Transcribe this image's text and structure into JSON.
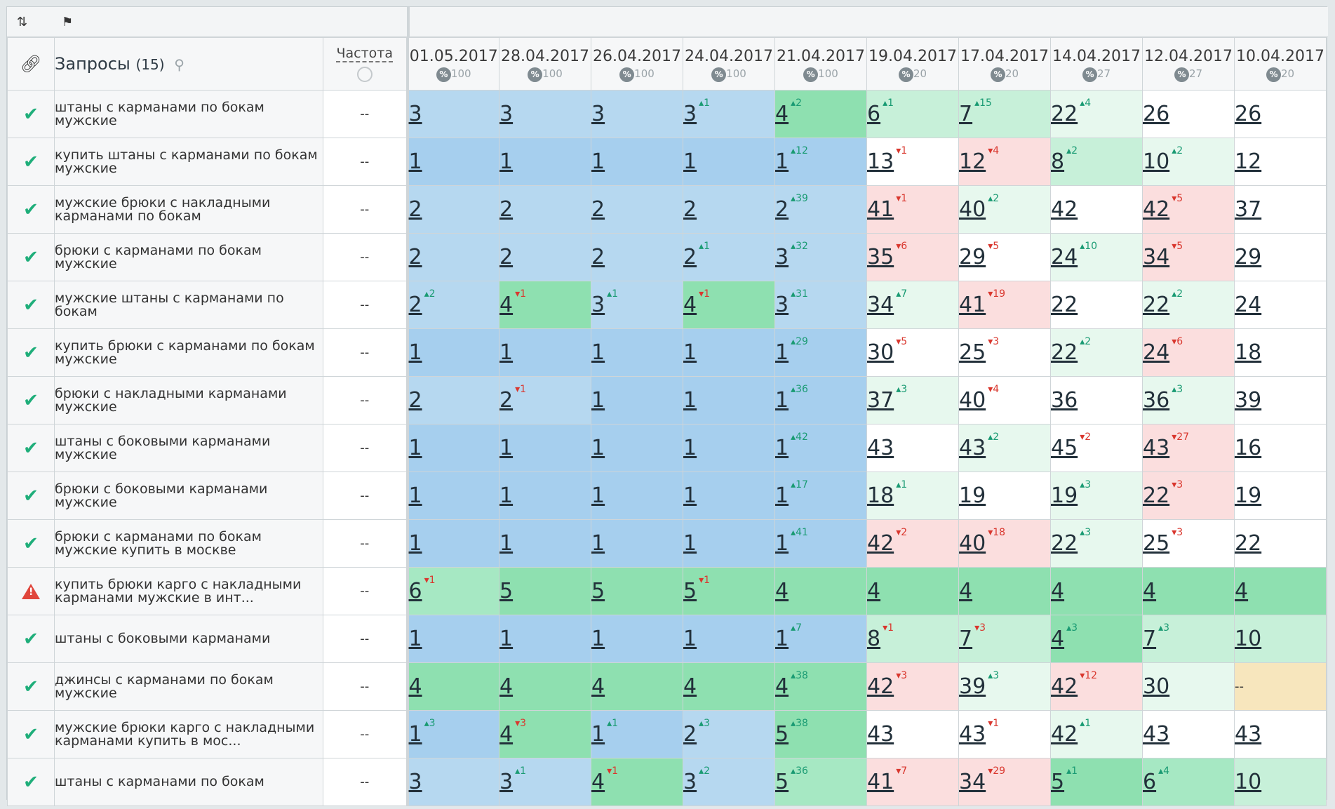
{
  "toolbar": {
    "sort_icon": "sort-icon",
    "tag_icon": "tag-icon"
  },
  "header": {
    "link_icon": "link-icon",
    "queries_label": "Запросы",
    "queries_count": "(15)",
    "frequency_label": "Частота",
    "dates": [
      {
        "date": "01.05.2017",
        "pct": "100"
      },
      {
        "date": "28.04.2017",
        "pct": "100"
      },
      {
        "date": "26.04.2017",
        "pct": "100"
      },
      {
        "date": "24.04.2017",
        "pct": "100"
      },
      {
        "date": "21.04.2017",
        "pct": "100"
      },
      {
        "date": "19.04.2017",
        "pct": "20"
      },
      {
        "date": "17.04.2017",
        "pct": "20"
      },
      {
        "date": "14.04.2017",
        "pct": "27"
      },
      {
        "date": "12.04.2017",
        "pct": "27"
      },
      {
        "date": "10.04.2017",
        "pct": "20"
      }
    ],
    "pct_symbol": "%"
  },
  "rows": [
    {
      "status": "ok",
      "query": "штаны с карманами по бокам мужские",
      "freq": "--",
      "cells": [
        {
          "v": "3",
          "bg": "b2"
        },
        {
          "v": "3",
          "bg": "b2"
        },
        {
          "v": "3",
          "bg": "b2"
        },
        {
          "v": "3",
          "d": "1",
          "dir": "up",
          "bg": "b2"
        },
        {
          "v": "4",
          "d": "2",
          "dir": "up",
          "bg": "g1"
        },
        {
          "v": "6",
          "d": "1",
          "dir": "up",
          "bg": "g3"
        },
        {
          "v": "7",
          "d": "15",
          "dir": "up",
          "bg": "g3"
        },
        {
          "v": "22",
          "d": "4",
          "dir": "up",
          "bg": "g4"
        },
        {
          "v": "26",
          "bg": "w"
        },
        {
          "v": "26",
          "bg": "w"
        }
      ]
    },
    {
      "status": "ok",
      "query": "купить штаны с карманами по бокам мужские",
      "freq": "--",
      "cells": [
        {
          "v": "1",
          "bg": "b1"
        },
        {
          "v": "1",
          "bg": "b1"
        },
        {
          "v": "1",
          "bg": "b1"
        },
        {
          "v": "1",
          "bg": "b1"
        },
        {
          "v": "1",
          "d": "12",
          "dir": "up",
          "bg": "b1"
        },
        {
          "v": "13",
          "d": "1",
          "dir": "down",
          "bg": "w"
        },
        {
          "v": "12",
          "d": "4",
          "dir": "down",
          "bg": "r1"
        },
        {
          "v": "8",
          "d": "2",
          "dir": "up",
          "bg": "g3"
        },
        {
          "v": "10",
          "d": "2",
          "dir": "up",
          "bg": "g4"
        },
        {
          "v": "12",
          "bg": "w"
        }
      ]
    },
    {
      "status": "ok",
      "query": "мужские брюки с накладными карманами по бокам",
      "freq": "--",
      "cells": [
        {
          "v": "2",
          "bg": "b2"
        },
        {
          "v": "2",
          "bg": "b2"
        },
        {
          "v": "2",
          "bg": "b2"
        },
        {
          "v": "2",
          "bg": "b2"
        },
        {
          "v": "2",
          "d": "39",
          "dir": "up",
          "bg": "b2"
        },
        {
          "v": "41",
          "d": "1",
          "dir": "down",
          "bg": "r1"
        },
        {
          "v": "40",
          "d": "2",
          "dir": "up",
          "bg": "g4"
        },
        {
          "v": "42",
          "bg": "w"
        },
        {
          "v": "42",
          "d": "5",
          "dir": "down",
          "bg": "r1"
        },
        {
          "v": "37",
          "bg": "w"
        }
      ]
    },
    {
      "status": "ok",
      "query": "брюки с карманами по бокам мужские",
      "freq": "--",
      "cells": [
        {
          "v": "2",
          "bg": "b2"
        },
        {
          "v": "2",
          "bg": "b2"
        },
        {
          "v": "2",
          "bg": "b2"
        },
        {
          "v": "2",
          "d": "1",
          "dir": "up",
          "bg": "b2"
        },
        {
          "v": "3",
          "d": "32",
          "dir": "up",
          "bg": "b2"
        },
        {
          "v": "35",
          "d": "6",
          "dir": "down",
          "bg": "r1"
        },
        {
          "v": "29",
          "d": "5",
          "dir": "down",
          "bg": "w"
        },
        {
          "v": "24",
          "d": "10",
          "dir": "up",
          "bg": "g4"
        },
        {
          "v": "34",
          "d": "5",
          "dir": "down",
          "bg": "r1"
        },
        {
          "v": "29",
          "bg": "w"
        }
      ]
    },
    {
      "status": "ok",
      "query": "мужские штаны с карманами по бокам",
      "freq": "--",
      "cells": [
        {
          "v": "2",
          "d": "2",
          "dir": "up",
          "bg": "b2"
        },
        {
          "v": "4",
          "d": "1",
          "dir": "down",
          "bg": "g1"
        },
        {
          "v": "3",
          "d": "1",
          "dir": "up",
          "bg": "b2"
        },
        {
          "v": "4",
          "d": "1",
          "dir": "down",
          "bg": "g1"
        },
        {
          "v": "3",
          "d": "31",
          "dir": "up",
          "bg": "b2"
        },
        {
          "v": "34",
          "d": "7",
          "dir": "up",
          "bg": "g4"
        },
        {
          "v": "41",
          "d": "19",
          "dir": "down",
          "bg": "r1"
        },
        {
          "v": "22",
          "bg": "w"
        },
        {
          "v": "22",
          "d": "2",
          "dir": "up",
          "bg": "g4"
        },
        {
          "v": "24",
          "bg": "w"
        }
      ]
    },
    {
      "status": "ok",
      "query": "купить брюки с карманами по бокам мужские",
      "freq": "--",
      "cells": [
        {
          "v": "1",
          "bg": "b1"
        },
        {
          "v": "1",
          "bg": "b1"
        },
        {
          "v": "1",
          "bg": "b1"
        },
        {
          "v": "1",
          "bg": "b1"
        },
        {
          "v": "1",
          "d": "29",
          "dir": "up",
          "bg": "b1"
        },
        {
          "v": "30",
          "d": "5",
          "dir": "down",
          "bg": "w"
        },
        {
          "v": "25",
          "d": "3",
          "dir": "down",
          "bg": "w"
        },
        {
          "v": "22",
          "d": "2",
          "dir": "up",
          "bg": "g4"
        },
        {
          "v": "24",
          "d": "6",
          "dir": "down",
          "bg": "r1"
        },
        {
          "v": "18",
          "bg": "w"
        }
      ]
    },
    {
      "status": "ok",
      "query": "брюки с накладными карманами мужские",
      "freq": "--",
      "cells": [
        {
          "v": "2",
          "bg": "b2"
        },
        {
          "v": "2",
          "d": "1",
          "dir": "down",
          "bg": "b2"
        },
        {
          "v": "1",
          "bg": "b1"
        },
        {
          "v": "1",
          "bg": "b1"
        },
        {
          "v": "1",
          "d": "36",
          "dir": "up",
          "bg": "b1"
        },
        {
          "v": "37",
          "d": "3",
          "dir": "up",
          "bg": "g4"
        },
        {
          "v": "40",
          "d": "4",
          "dir": "down",
          "bg": "w"
        },
        {
          "v": "36",
          "bg": "w"
        },
        {
          "v": "36",
          "d": "3",
          "dir": "up",
          "bg": "g4"
        },
        {
          "v": "39",
          "bg": "w"
        }
      ]
    },
    {
      "status": "ok",
      "query": "штаны с боковыми карманами мужские",
      "freq": "--",
      "cells": [
        {
          "v": "1",
          "bg": "b1"
        },
        {
          "v": "1",
          "bg": "b1"
        },
        {
          "v": "1",
          "bg": "b1"
        },
        {
          "v": "1",
          "bg": "b1"
        },
        {
          "v": "1",
          "d": "42",
          "dir": "up",
          "bg": "b1"
        },
        {
          "v": "43",
          "bg": "w"
        },
        {
          "v": "43",
          "d": "2",
          "dir": "up",
          "bg": "g4"
        },
        {
          "v": "45",
          "d": "2",
          "dir": "down",
          "bg": "w"
        },
        {
          "v": "43",
          "d": "27",
          "dir": "down",
          "bg": "r1"
        },
        {
          "v": "16",
          "bg": "w"
        }
      ]
    },
    {
      "status": "ok",
      "query": "брюки с боковыми карманами мужские",
      "freq": "--",
      "cells": [
        {
          "v": "1",
          "bg": "b1"
        },
        {
          "v": "1",
          "bg": "b1"
        },
        {
          "v": "1",
          "bg": "b1"
        },
        {
          "v": "1",
          "bg": "b1"
        },
        {
          "v": "1",
          "d": "17",
          "dir": "up",
          "bg": "b1"
        },
        {
          "v": "18",
          "d": "1",
          "dir": "up",
          "bg": "g4"
        },
        {
          "v": "19",
          "bg": "w"
        },
        {
          "v": "19",
          "d": "3",
          "dir": "up",
          "bg": "g4"
        },
        {
          "v": "22",
          "d": "3",
          "dir": "down",
          "bg": "r1"
        },
        {
          "v": "19",
          "bg": "w"
        }
      ]
    },
    {
      "status": "ok",
      "query": "брюки с карманами по бокам мужские купить в москве",
      "freq": "--",
      "cells": [
        {
          "v": "1",
          "bg": "b1"
        },
        {
          "v": "1",
          "bg": "b1"
        },
        {
          "v": "1",
          "bg": "b1"
        },
        {
          "v": "1",
          "bg": "b1"
        },
        {
          "v": "1",
          "d": "41",
          "dir": "up",
          "bg": "b1"
        },
        {
          "v": "42",
          "d": "2",
          "dir": "down",
          "bg": "r1"
        },
        {
          "v": "40",
          "d": "18",
          "dir": "down",
          "bg": "r1"
        },
        {
          "v": "22",
          "d": "3",
          "dir": "up",
          "bg": "g4"
        },
        {
          "v": "25",
          "d": "3",
          "dir": "down",
          "bg": "w"
        },
        {
          "v": "22",
          "bg": "w"
        }
      ]
    },
    {
      "status": "warn",
      "query": "купить брюки карго с накладными карманами мужские в инт...",
      "freq": "--",
      "cells": [
        {
          "v": "6",
          "d": "1",
          "dir": "down",
          "bg": "g2"
        },
        {
          "v": "5",
          "bg": "g1"
        },
        {
          "v": "5",
          "bg": "g1"
        },
        {
          "v": "5",
          "d": "1",
          "dir": "down",
          "bg": "g1"
        },
        {
          "v": "4",
          "bg": "g1"
        },
        {
          "v": "4",
          "bg": "g1"
        },
        {
          "v": "4",
          "bg": "g1"
        },
        {
          "v": "4",
          "bg": "g1"
        },
        {
          "v": "4",
          "bg": "g1"
        },
        {
          "v": "4",
          "bg": "g1"
        }
      ]
    },
    {
      "status": "ok",
      "query": "штаны с боковыми карманами",
      "freq": "--",
      "cells": [
        {
          "v": "1",
          "bg": "b1"
        },
        {
          "v": "1",
          "bg": "b1"
        },
        {
          "v": "1",
          "bg": "b1"
        },
        {
          "v": "1",
          "bg": "b1"
        },
        {
          "v": "1",
          "d": "7",
          "dir": "up",
          "bg": "b1"
        },
        {
          "v": "8",
          "d": "1",
          "dir": "down",
          "bg": "g3"
        },
        {
          "v": "7",
          "d": "3",
          "dir": "down",
          "bg": "g3"
        },
        {
          "v": "4",
          "d": "3",
          "dir": "up",
          "bg": "g1"
        },
        {
          "v": "7",
          "d": "3",
          "dir": "up",
          "bg": "g3"
        },
        {
          "v": "10",
          "bg": "g3"
        }
      ]
    },
    {
      "status": "ok",
      "query": "джинсы с карманами по бокам мужские",
      "freq": "--",
      "cells": [
        {
          "v": "4",
          "bg": "g1"
        },
        {
          "v": "4",
          "bg": "g1"
        },
        {
          "v": "4",
          "bg": "g1"
        },
        {
          "v": "4",
          "bg": "g1"
        },
        {
          "v": "4",
          "d": "38",
          "dir": "up",
          "bg": "g1"
        },
        {
          "v": "42",
          "d": "3",
          "dir": "down",
          "bg": "r1"
        },
        {
          "v": "39",
          "d": "3",
          "dir": "up",
          "bg": "g4"
        },
        {
          "v": "42",
          "d": "12",
          "dir": "down",
          "bg": "r1"
        },
        {
          "v": "30",
          "bg": "g4"
        },
        {
          "v": "--",
          "bg": "y",
          "none": true
        }
      ]
    },
    {
      "status": "ok",
      "query": "мужские брюки карго с накладными карманами купить в мос...",
      "freq": "--",
      "cells": [
        {
          "v": "1",
          "d": "3",
          "dir": "up",
          "bg": "b1"
        },
        {
          "v": "4",
          "d": "3",
          "dir": "down",
          "bg": "g1"
        },
        {
          "v": "1",
          "d": "1",
          "dir": "up",
          "bg": "b1"
        },
        {
          "v": "2",
          "d": "3",
          "dir": "up",
          "bg": "b2"
        },
        {
          "v": "5",
          "d": "38",
          "dir": "up",
          "bg": "g1"
        },
        {
          "v": "43",
          "bg": "w"
        },
        {
          "v": "43",
          "d": "1",
          "dir": "down",
          "bg": "w"
        },
        {
          "v": "42",
          "d": "1",
          "dir": "up",
          "bg": "g4"
        },
        {
          "v": "43",
          "bg": "w"
        },
        {
          "v": "43",
          "bg": "w"
        }
      ]
    },
    {
      "status": "ok",
      "query": "штаны с карманами по бокам",
      "freq": "--",
      "cells": [
        {
          "v": "3",
          "bg": "b2"
        },
        {
          "v": "3",
          "d": "1",
          "dir": "up",
          "bg": "b2"
        },
        {
          "v": "4",
          "d": "1",
          "dir": "down",
          "bg": "g1"
        },
        {
          "v": "3",
          "d": "2",
          "dir": "up",
          "bg": "b2"
        },
        {
          "v": "5",
          "d": "36",
          "dir": "up",
          "bg": "g2"
        },
        {
          "v": "41",
          "d": "7",
          "dir": "down",
          "bg": "r1"
        },
        {
          "v": "34",
          "d": "29",
          "dir": "down",
          "bg": "r1"
        },
        {
          "v": "5",
          "d": "1",
          "dir": "up",
          "bg": "g1"
        },
        {
          "v": "6",
          "d": "4",
          "dir": "up",
          "bg": "g2"
        },
        {
          "v": "10",
          "bg": "g3"
        }
      ]
    }
  ]
}
